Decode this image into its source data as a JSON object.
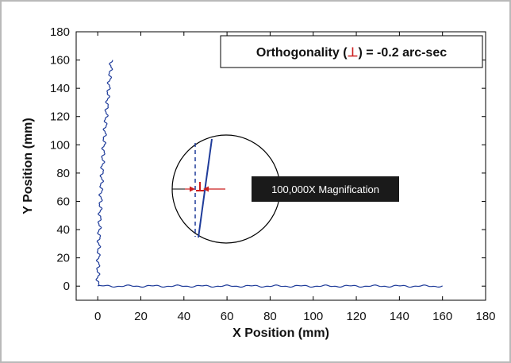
{
  "chart_data": {
    "type": "line",
    "xlabel": "X Position (mm)",
    "ylabel": "Y Position (mm)",
    "xlim": [
      -10,
      180
    ],
    "ylim": [
      -10,
      180
    ],
    "xticks": [
      0,
      20,
      40,
      60,
      80,
      100,
      120,
      140,
      160,
      180
    ],
    "yticks": [
      0,
      20,
      40,
      60,
      80,
      100,
      120,
      140,
      160,
      180
    ],
    "grid": false,
    "series": [
      {
        "color": "#1f3c9a",
        "x": [
          0,
          160
        ],
        "y": [
          0,
          0
        ],
        "description_note": ""
      },
      {
        "color": "#1f3c9a",
        "x": [
          0,
          5
        ],
        "y": [
          0,
          160
        ]
      }
    ],
    "legend_box": {
      "prefix": "Orthogonality (",
      "symbol": "⊥",
      "suffix": ") = -0.2 arc-sec",
      "symbol_color": "#cc1f1f",
      "placement": "top-right"
    },
    "inset": {
      "label": "100,000X Magnification",
      "arrow_color": "#cc1f1f",
      "line_color": "#1f3c9a"
    }
  },
  "colors": {
    "frame_border": "#b9b9b9",
    "axes_border": "#000000",
    "trace": "#1f3c9a",
    "accent": "#cc1f1f",
    "callout_bg": "#1a1a1a"
  }
}
